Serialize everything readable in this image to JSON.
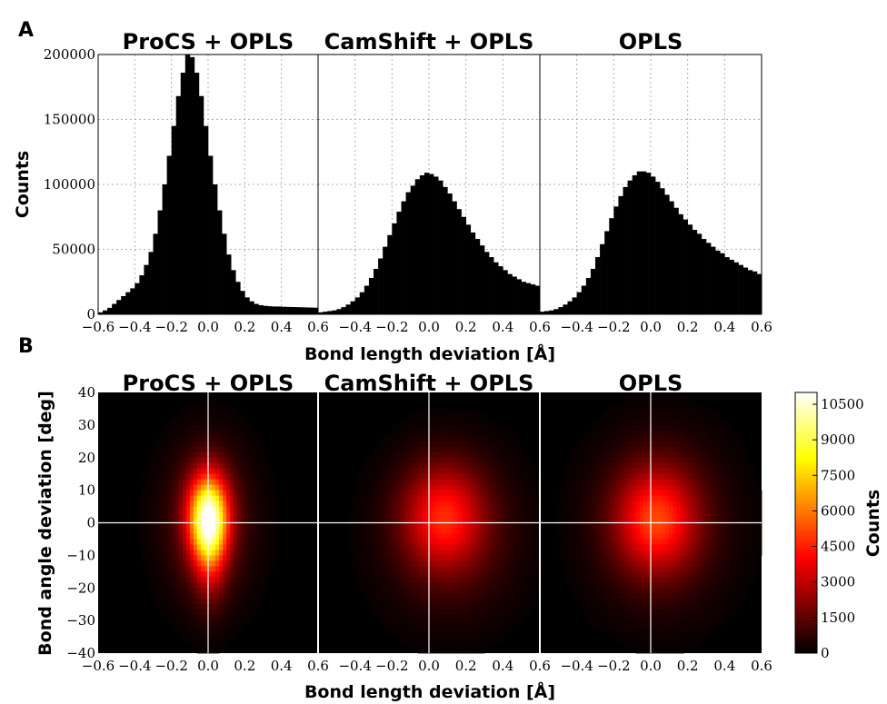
{
  "panel_labels": [
    "A",
    "B"
  ],
  "chart_data": [
    {
      "type": "bar",
      "panel": "A",
      "ylabel": "Counts",
      "xlabel": "Bond length deviation [Å]",
      "xlim": [
        -0.6,
        0.6
      ],
      "ylim": [
        0,
        200000
      ],
      "grid": true,
      "x_ticks": [
        "−0.6",
        "−0.4",
        "−0.2",
        "0.0",
        "0.2",
        "0.4",
        "0.6"
      ],
      "y_ticks": [
        "0",
        "50000",
        "100000",
        "150000",
        "200000"
      ],
      "bin_width": 0.025,
      "bar_color": "#000000",
      "subplots": [
        {
          "title": "ProCS + OPLS",
          "values": [
            1500,
            3000,
            5000,
            8000,
            11000,
            14000,
            17000,
            20000,
            24000,
            30000,
            38000,
            48000,
            62000,
            80000,
            100000,
            122000,
            145000,
            168000,
            186000,
            200000,
            198000,
            186000,
            168000,
            145000,
            122000,
            100000,
            80000,
            62000,
            46000,
            34000,
            25000,
            18000,
            13000,
            10000,
            8000,
            7000,
            6500,
            6200,
            6000,
            6000,
            5800,
            5700,
            5600,
            5500,
            5400,
            5300,
            5200,
            5100
          ]
        },
        {
          "title": "CamShift + OPLS",
          "values": [
            1500,
            2000,
            2500,
            3000,
            4000,
            5500,
            7500,
            10000,
            13000,
            17000,
            22000,
            28000,
            35000,
            43000,
            52000,
            61000,
            70000,
            79000,
            87000,
            94000,
            99000,
            104000,
            107000,
            109000,
            108000,
            106000,
            103000,
            98000,
            93000,
            87000,
            81000,
            75000,
            69000,
            63000,
            58000,
            53000,
            48000,
            44000,
            40000,
            37000,
            34000,
            31000,
            29000,
            27000,
            25000,
            24000,
            23000,
            22000
          ]
        },
        {
          "title": "OPLS",
          "values": [
            2000,
            2500,
            3000,
            4000,
            5500,
            7500,
            10000,
            13000,
            17000,
            22000,
            28000,
            35000,
            44000,
            54000,
            64000,
            74000,
            83000,
            91000,
            98000,
            103000,
            107000,
            110000,
            110000,
            109000,
            106000,
            102000,
            97000,
            92000,
            87000,
            82000,
            77000,
            73000,
            69000,
            65000,
            62000,
            58000,
            55000,
            52000,
            49000,
            47000,
            44000,
            42000,
            40000,
            38000,
            36000,
            34000,
            33000,
            31000
          ]
        }
      ]
    },
    {
      "type": "heatmap",
      "panel": "B",
      "xlabel": "Bond length deviation [Å]",
      "ylabel": "Bond angle deviation [deg]",
      "xlim": [
        -0.6,
        0.6
      ],
      "ylim": [
        -40,
        40
      ],
      "x_ticks": [
        "−0.6",
        "−0.4",
        "−0.2",
        "0.0",
        "0.2",
        "0.4",
        "0.6"
      ],
      "y_ticks": [
        "40",
        "30",
        "20",
        "10",
        "0",
        "−10",
        "−20",
        "−30",
        "−40"
      ],
      "colorbar_label": "Counts",
      "colorbar_ticks": [
        "10500",
        "9000",
        "7500",
        "6000",
        "4500",
        "3000",
        "1500",
        "0"
      ],
      "colorbar_range": [
        0,
        11000
      ],
      "colormap": "hot",
      "crosshair_at": [
        0,
        0
      ],
      "subplots": [
        {
          "title": "ProCS + OPLS",
          "components": [
            {
              "x": 0.0,
              "y": 2,
              "sx": 0.075,
              "sy": 9,
              "amp": 8000
            },
            {
              "x": 0.01,
              "y": -7,
              "sx": 0.06,
              "sy": 11,
              "amp": 3000
            },
            {
              "x": 0.0,
              "y": 0,
              "sx": 0.16,
              "sy": 16,
              "amp": 1800
            }
          ]
        },
        {
          "title": "CamShift + OPLS",
          "components": [
            {
              "x": 0.08,
              "y": 2,
              "sx": 0.15,
              "sy": 11,
              "amp": 3600
            },
            {
              "x": 0.12,
              "y": -4,
              "sx": 0.25,
              "sy": 17,
              "amp": 1200
            }
          ]
        },
        {
          "title": "OPLS",
          "components": [
            {
              "x": 0.03,
              "y": 1,
              "sx": 0.15,
              "sy": 11,
              "amp": 3900
            },
            {
              "x": 0.05,
              "y": 0,
              "sx": 0.25,
              "sy": 18,
              "amp": 1300
            }
          ]
        }
      ]
    }
  ]
}
